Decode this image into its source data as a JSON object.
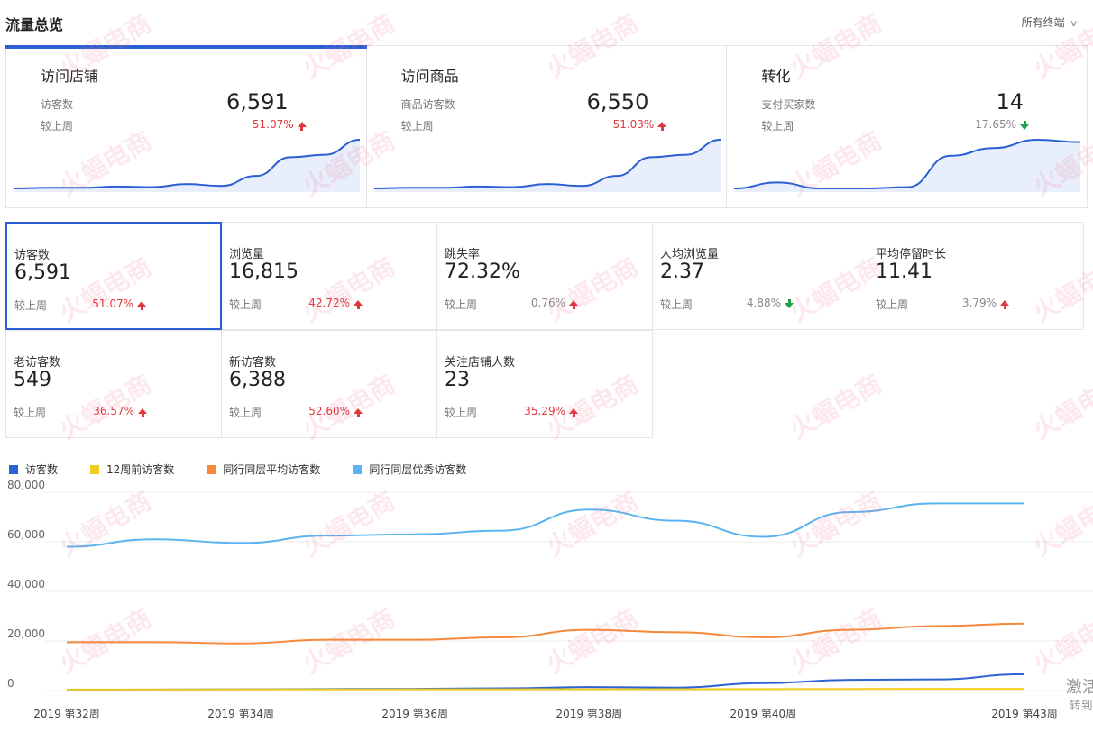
{
  "header": {
    "title": "流量总览",
    "device_filter": "所有终端"
  },
  "top_cards": [
    {
      "title": "访问店铺",
      "label": "访客数",
      "value": "6,591",
      "compare": "较上周",
      "change": "51.07%",
      "trend": "up",
      "sparkline": [
        2,
        3,
        3,
        5,
        4,
        9,
        6,
        22,
        52,
        56,
        80
      ]
    },
    {
      "title": "访问商品",
      "label": "商品访客数",
      "value": "6,550",
      "compare": "较上周",
      "change": "51.03%",
      "trend": "up",
      "sparkline": [
        2,
        3,
        3,
        5,
        4,
        9,
        6,
        22,
        52,
        56,
        80
      ]
    },
    {
      "title": "转化",
      "label": "支付买家数",
      "value": "14",
      "compare": "较上周",
      "change": "17.65%",
      "trend": "down",
      "sparkline": [
        0,
        10,
        0,
        0,
        2,
        55,
        68,
        82,
        78
      ]
    }
  ],
  "metrics": [
    [
      {
        "label": "访客数",
        "value": "6,591",
        "compare": "较上周",
        "change": "51.07%",
        "trend": "up",
        "selected": true
      },
      {
        "label": "浏览量",
        "value": "16,815",
        "compare": "较上周",
        "change": "42.72%",
        "trend": "up"
      },
      {
        "label": "跳失率",
        "value": "72.32%",
        "compare": "较上周",
        "change": "0.76%",
        "trend": "up"
      },
      {
        "label": "人均浏览量",
        "value": "2.37",
        "compare": "较上周",
        "change": "4.88%",
        "trend": "down"
      },
      {
        "label": "平均停留时长",
        "value": "11.41",
        "compare": "较上周",
        "change": "3.79%",
        "trend": "up"
      }
    ],
    [
      {
        "label": "老访客数",
        "value": "549",
        "compare": "较上周",
        "change": "36.57%",
        "trend": "up"
      },
      {
        "label": "新访客数",
        "value": "6,388",
        "compare": "较上周",
        "change": "52.60%",
        "trend": "up"
      },
      {
        "label": "关注店铺人数",
        "value": "23",
        "compare": "较上周",
        "change": "35.29%",
        "trend": "up"
      }
    ]
  ],
  "colors": {
    "accent": "#2b5fd4",
    "up": "#e0373c",
    "down_arrow": "#20a04a",
    "series_visitors": "#2d62d3",
    "series_12w": "#f0cd1f",
    "series_avg": "#f5883a",
    "series_top": "#5bb3f0"
  },
  "chart_data": {
    "type": "line",
    "x": [
      "2019 第32周",
      "2019 第33周",
      "2019 第34周",
      "2019 第35周",
      "2019 第36周",
      "2019 第37周",
      "2019 第38周",
      "2019 第39周",
      "2019 第40周",
      "2019 第41周",
      "2019 第42周",
      "2019 第43周"
    ],
    "x_tick_labels": [
      "2019 第32周",
      "2019 第34周",
      "2019 第36周",
      "2019 第38周",
      "2019 第40周",
      "2019 第43周"
    ],
    "x_tick_indices": [
      0,
      2,
      4,
      6,
      8,
      11
    ],
    "y_ticks": [
      "80,000",
      "60,000",
      "40,000",
      "20,000",
      "0"
    ],
    "ylim": [
      0,
      80000
    ],
    "grid": true,
    "legend_position": "top-left",
    "series": [
      {
        "name": "访客数",
        "color": "#2d62d3",
        "values": [
          300,
          400,
          500,
          600,
          700,
          900,
          1400,
          1200,
          3000,
          4300,
          4500,
          6591
        ]
      },
      {
        "name": "12周前访客数",
        "color": "#f0cd1f",
        "values": [
          400,
          400,
          450,
          450,
          500,
          500,
          550,
          550,
          600,
          650,
          700,
          700
        ]
      },
      {
        "name": "同行同层平均访客数",
        "color": "#f5883a",
        "values": [
          19500,
          19500,
          19000,
          20500,
          20500,
          21500,
          24500,
          23500,
          21500,
          24500,
          26000,
          27000
        ]
      },
      {
        "name": "同行同层优秀访客数",
        "color": "#5bb3f0",
        "values": [
          58000,
          61000,
          59500,
          62500,
          63000,
          64500,
          73000,
          68500,
          62000,
          72000,
          75500,
          75500
        ]
      }
    ]
  },
  "watermark_text": "火蝠电商",
  "system_overlay": {
    "title": "激活",
    "sub": "转到“i"
  }
}
